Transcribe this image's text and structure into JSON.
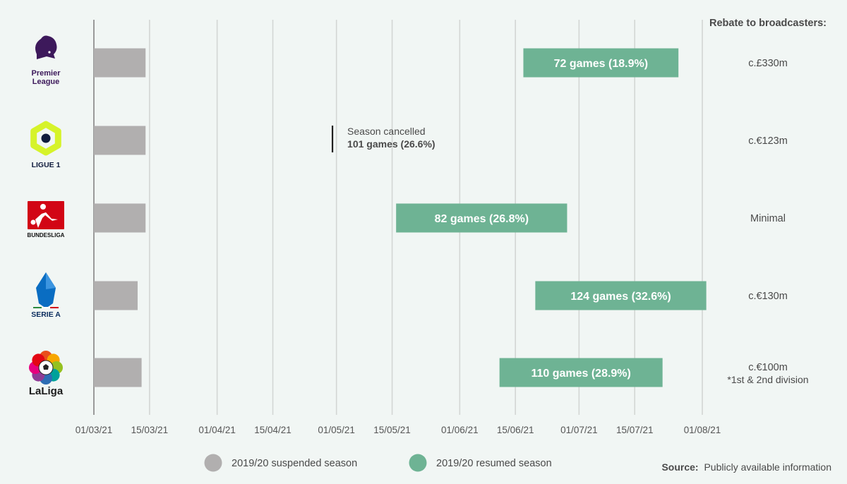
{
  "chart_data": {
    "type": "gantt",
    "x_axis_type": "date",
    "x_start": "2021-03-01",
    "x_end": "2021-08-01",
    "x_ticks": [
      "01/03/21",
      "15/03/21",
      "01/04/21",
      "15/04/21",
      "01/05/21",
      "15/05/21",
      "01/06/21",
      "15/06/21",
      "01/07/21",
      "15/07/21",
      "01/08/21"
    ],
    "leagues": [
      {
        "name": "Premier League",
        "logo_text": [
          "Premier",
          "League"
        ],
        "logo": "premier-league-lion",
        "suspended": {
          "start": "2021-03-01",
          "end": "2021-03-14"
        },
        "resumed": {
          "start": "2021-06-17",
          "end": "2021-07-26",
          "label": "72 games (18.9%)"
        },
        "rebate": "c.£330m"
      },
      {
        "name": "Ligue 1",
        "logo_text": [
          "LIGUE 1"
        ],
        "logo": "ligue1-hexagon",
        "suspended": {
          "start": "2021-03-01",
          "end": "2021-03-14"
        },
        "cancelled": {
          "date": "2021-04-30",
          "label_line1": "Season cancelled",
          "label_line2": "101 games (26.6%)"
        },
        "rebate": "c.€123m"
      },
      {
        "name": "Bundesliga",
        "logo_text": [
          "BUNDESLIGA"
        ],
        "logo": "bundesliga-red-square",
        "suspended": {
          "start": "2021-03-01",
          "end": "2021-03-14"
        },
        "resumed": {
          "start": "2021-05-16",
          "end": "2021-06-28",
          "label": "82 games (26.8%)"
        },
        "rebate": "Minimal"
      },
      {
        "name": "Serie A",
        "logo_text": [
          "SERIE A"
        ],
        "logo": "serie-a-shield",
        "suspended": {
          "start": "2021-03-01",
          "end": "2021-03-12"
        },
        "resumed": {
          "start": "2021-06-20",
          "end": "2021-08-02",
          "label": "124 games (32.6%)"
        },
        "rebate": "c.€130m"
      },
      {
        "name": "LaLiga",
        "logo_text": [
          "LaLiga"
        ],
        "logo": "laliga-flower-ball",
        "suspended": {
          "start": "2021-03-01",
          "end": "2021-03-13"
        },
        "resumed": {
          "start": "2021-06-11",
          "end": "2021-07-22",
          "label": "110 games (28.9%)"
        },
        "rebate": "c.€100m",
        "rebate_note": "*1st & 2nd division"
      }
    ],
    "rebate_header": "Rebate to broadcasters:",
    "legend": [
      {
        "label": "2019/20 suspended season",
        "color": "#b1afaf"
      },
      {
        "label": "2019/20 resumed season",
        "color": "#6eb394"
      }
    ],
    "legend_position": "bottom",
    "grid": true
  },
  "source": {
    "label": "Source:",
    "text": "Publicly available information"
  },
  "colors": {
    "background": "#f1f6f4",
    "suspended": "#b1afaf",
    "resumed": "#6eb394",
    "grid": "#d3d6d4",
    "axis": "#9a9a9a",
    "text": "#4a4a4a",
    "premier_league": "#3d195b",
    "ligue1": "#d6f32a",
    "bundesliga": "#d20515",
    "serie_a": "#0a6dc2"
  }
}
